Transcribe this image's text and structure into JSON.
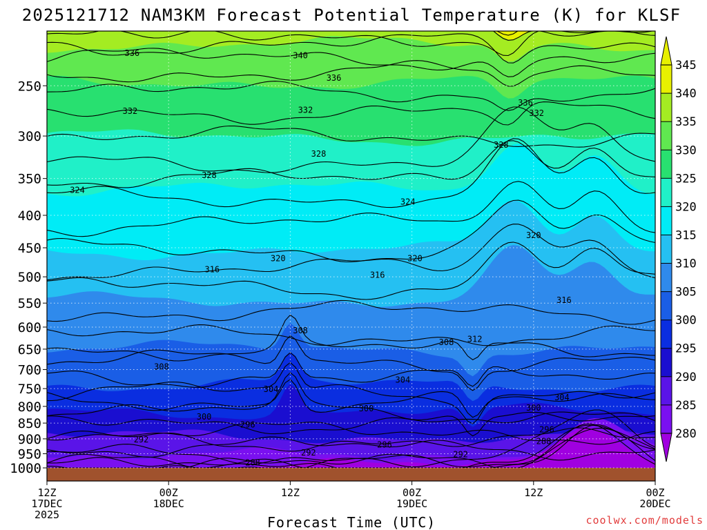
{
  "title": "2025121712 NAM3KM Forecast Potential Temperature (K) for KLSF",
  "watermark": "coolwx.com/models",
  "chart_data": {
    "type": "heatmap",
    "title": "2025121712 NAM3KM Forecast Potential Temperature (K) for KLSF",
    "xlabel": "Forecast Time (UTC)",
    "ylabel": "",
    "x_ticks": [
      {
        "hour": 0,
        "lines": [
          "12Z",
          "17DEC",
          "2025"
        ]
      },
      {
        "hour": 12,
        "lines": [
          "00Z",
          "18DEC"
        ]
      },
      {
        "hour": 24,
        "lines": [
          "12Z"
        ]
      },
      {
        "hour": 36,
        "lines": [
          "00Z",
          "19DEC"
        ]
      },
      {
        "hour": 48,
        "lines": [
          "12Z"
        ]
      },
      {
        "hour": 60,
        "lines": [
          "00Z",
          "20DEC"
        ]
      }
    ],
    "xlim_hours": [
      0,
      60
    ],
    "y_axis_pressure_hPa": [
      250,
      300,
      350,
      400,
      450,
      500,
      550,
      600,
      650,
      700,
      750,
      800,
      850,
      900,
      950,
      1000
    ],
    "ylim_hPa": [
      205,
      1000
    ],
    "y_scale": "log-pressure",
    "grid": "dotted",
    "colorbar": {
      "levels": [
        280,
        285,
        290,
        295,
        300,
        305,
        310,
        315,
        320,
        325,
        330,
        335,
        340,
        345
      ],
      "tick_labels": [
        "345",
        "340",
        "335",
        "330",
        "325",
        "320",
        "315",
        "310",
        "305",
        "300",
        "295",
        "290",
        "285",
        "280"
      ],
      "colors": [
        "#a000e0",
        "#7a10f0",
        "#5a14e8",
        "#1a0ed0",
        "#0a2ee0",
        "#1a5ee6",
        "#2f8aec",
        "#25c0f2",
        "#00ecf6",
        "#20f0c8",
        "#28e070",
        "#60e850",
        "#a4ec22",
        "#e8f000"
      ]
    },
    "ground_color": "#a0522d",
    "contour_interval_K": 4,
    "contour_labels": [
      {
        "value": 336,
        "hour": 8.4,
        "p": 222
      },
      {
        "value": 340,
        "hour": 25.0,
        "p": 224
      },
      {
        "value": 336,
        "hour": 28.3,
        "p": 243
      },
      {
        "value": 336,
        "hour": 47.2,
        "p": 266
      },
      {
        "value": 332,
        "hour": 8.2,
        "p": 274
      },
      {
        "value": 332,
        "hour": 25.5,
        "p": 273
      },
      {
        "value": 332,
        "hour": 48.3,
        "p": 276
      },
      {
        "value": 328,
        "hour": 26.8,
        "p": 320
      },
      {
        "value": 328,
        "hour": 44.8,
        "p": 310
      },
      {
        "value": 328,
        "hour": 16.0,
        "p": 346
      },
      {
        "value": 324,
        "hour": 3.0,
        "p": 365
      },
      {
        "value": 324,
        "hour": 35.6,
        "p": 381
      },
      {
        "value": 320,
        "hour": 48.0,
        "p": 430
      },
      {
        "value": 320,
        "hour": 22.8,
        "p": 468
      },
      {
        "value": 320,
        "hour": 36.3,
        "p": 468
      },
      {
        "value": 316,
        "hour": 16.3,
        "p": 487
      },
      {
        "value": 316,
        "hour": 32.6,
        "p": 497
      },
      {
        "value": 316,
        "hour": 51.0,
        "p": 544
      },
      {
        "value": 312,
        "hour": 42.2,
        "p": 627
      },
      {
        "value": 308,
        "hour": 25.0,
        "p": 608
      },
      {
        "value": 308,
        "hour": 39.4,
        "p": 634
      },
      {
        "value": 308,
        "hour": 11.3,
        "p": 693
      },
      {
        "value": 304,
        "hour": 22.1,
        "p": 752
      },
      {
        "value": 304,
        "hour": 35.1,
        "p": 727
      },
      {
        "value": 304,
        "hour": 50.8,
        "p": 775
      },
      {
        "value": 300,
        "hour": 15.5,
        "p": 831
      },
      {
        "value": 300,
        "hour": 31.5,
        "p": 806
      },
      {
        "value": 300,
        "hour": 48.0,
        "p": 804
      },
      {
        "value": 296,
        "hour": 19.8,
        "p": 855
      },
      {
        "value": 296,
        "hour": 33.3,
        "p": 920
      },
      {
        "value": 296,
        "hour": 49.3,
        "p": 870
      },
      {
        "value": 292,
        "hour": 9.3,
        "p": 903
      },
      {
        "value": 292,
        "hour": 25.8,
        "p": 947
      },
      {
        "value": 292,
        "hour": 40.8,
        "p": 952
      },
      {
        "value": 288,
        "hour": 20.3,
        "p": 982
      },
      {
        "value": 288,
        "hour": 49.0,
        "p": 908
      }
    ]
  }
}
